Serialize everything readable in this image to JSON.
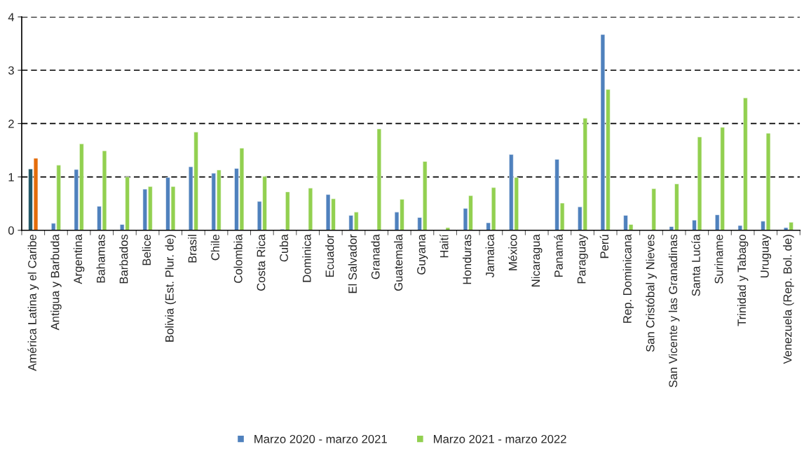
{
  "chart_data": {
    "type": "bar",
    "categories": [
      "América Latina y el Caribe",
      "Antigua y Barbuda",
      "Argentina",
      "Bahamas",
      "Barbados",
      "Belice",
      "Bolivia (Est. Plur. de)",
      "Brasil",
      "Chile",
      "Colombia",
      "Costa Rica",
      "Cuba",
      "Dominica",
      "Ecuador",
      "El Salvador",
      "Granada",
      "Guatemala",
      "Guyana",
      "Haití",
      "Honduras",
      "Jamaica",
      "México",
      "Nicaragua",
      "Panamá",
      "Paraguay",
      "Perú",
      "Rep. Dominicana",
      "San Cristóbal y Nieves",
      "San Vicente y las Granadinas",
      "Santa Lucía",
      "Suriname",
      "Trinidad y Tabago",
      "Uruguay",
      "Venezuela (Rep. Bol. de)"
    ],
    "series": [
      {
        "name": "Marzo 2020 - marzo 2021",
        "color": "#4f81bd",
        "colors": [
          "#215868",
          "#4f81bd",
          "#4f81bd",
          "#4f81bd",
          "#4f81bd",
          "#4f81bd",
          "#4f81bd",
          "#4f81bd",
          "#4f81bd",
          "#4f81bd",
          "#4f81bd",
          "#4f81bd",
          "#4f81bd",
          "#4f81bd",
          "#4f81bd",
          "#4f81bd",
          "#4f81bd",
          "#4f81bd",
          "#4f81bd",
          "#4f81bd",
          "#4f81bd",
          "#4f81bd",
          "#4f81bd",
          "#4f81bd",
          "#4f81bd",
          "#4f81bd",
          "#4f81bd",
          "#4f81bd",
          "#4f81bd",
          "#4f81bd",
          "#4f81bd",
          "#4f81bd",
          "#4f81bd",
          "#4f81bd"
        ],
        "values": [
          1.15,
          0.13,
          1.14,
          0.45,
          0.11,
          0.77,
          0.99,
          1.19,
          1.07,
          1.16,
          0.54,
          0.02,
          null,
          0.67,
          0.28,
          null,
          0.34,
          0.24,
          0.01,
          0.41,
          0.14,
          1.42,
          0.01,
          1.33,
          0.44,
          3.67,
          0.28,
          null,
          0.07,
          0.19,
          0.29,
          0.09,
          0.17,
          0.05
        ]
      },
      {
        "name": "Marzo 2021 - marzo 2022",
        "color": "#92d050",
        "colors": [
          "#e46c0a",
          "#92d050",
          "#92d050",
          "#92d050",
          "#92d050",
          "#92d050",
          "#92d050",
          "#92d050",
          "#92d050",
          "#92d050",
          "#92d050",
          "#92d050",
          "#92d050",
          "#92d050",
          "#92d050",
          "#92d050",
          "#92d050",
          "#92d050",
          "#92d050",
          "#92d050",
          "#92d050",
          "#92d050",
          "#92d050",
          "#92d050",
          "#92d050",
          "#92d050",
          "#92d050",
          "#92d050",
          "#92d050",
          "#92d050",
          "#92d050",
          "#92d050",
          "#92d050",
          "#92d050"
        ],
        "values": [
          1.35,
          1.22,
          1.62,
          1.49,
          1.0,
          0.82,
          0.82,
          1.84,
          1.13,
          1.54,
          1.01,
          0.72,
          0.79,
          0.59,
          0.34,
          1.9,
          0.58,
          1.29,
          0.05,
          0.65,
          0.8,
          0.99,
          null,
          0.51,
          2.1,
          2.64,
          0.11,
          0.78,
          0.87,
          1.75,
          1.93,
          2.48,
          1.82,
          0.15
        ]
      }
    ],
    "ylim": [
      0,
      4
    ],
    "yticks": [
      0,
      1,
      2,
      3,
      4
    ],
    "grid": "y",
    "legend": "bottom"
  }
}
